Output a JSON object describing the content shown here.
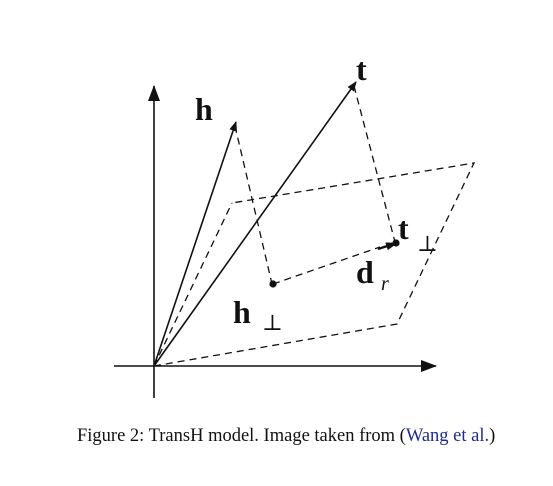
{
  "diagram": {
    "labels": {
      "h": "h",
      "t": "t",
      "h_perp": "h",
      "t_perp": "t",
      "d": "d",
      "d_sub": "r",
      "perp_symbol": "⊥"
    }
  },
  "caption": {
    "prefix": "Figure 2: TransH model. Image taken from (",
    "citation": "Wang et al.",
    "suffix": ")"
  },
  "colors": {
    "ink": "#111111",
    "citation_link": "#1f2b8f"
  }
}
